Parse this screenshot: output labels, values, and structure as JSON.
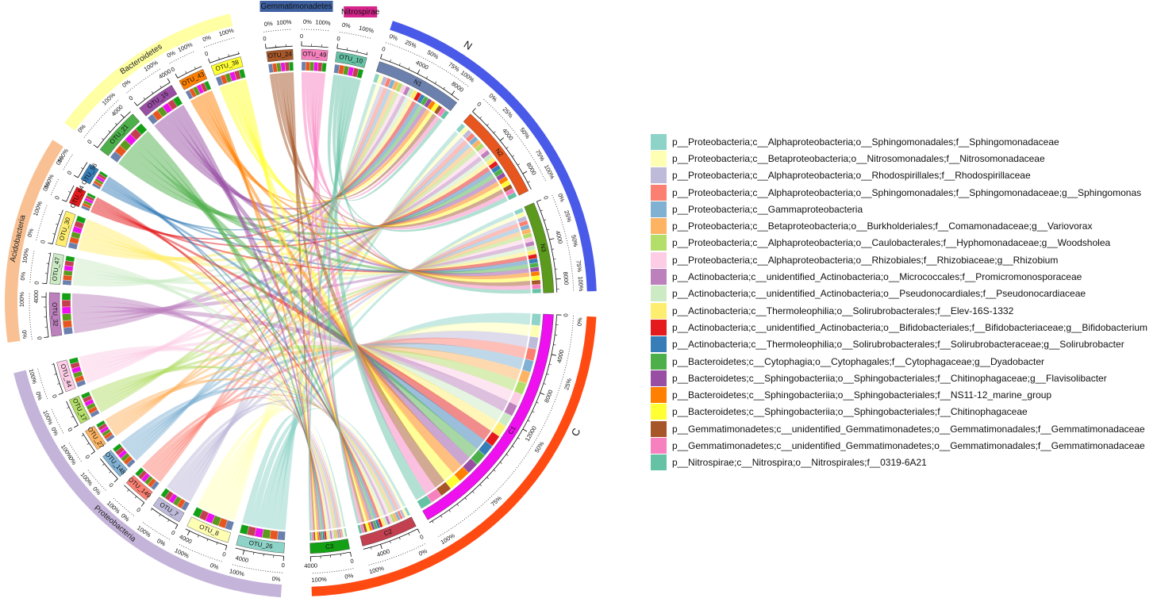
{
  "groups": [
    {
      "label": "N",
      "color": "#4a5ae8"
    },
    {
      "label": "C",
      "color": "#ff4a12"
    }
  ],
  "samples": [
    {
      "label": "N1",
      "color": "#6b80ad"
    },
    {
      "label": "N2",
      "color": "#e8561f"
    },
    {
      "label": "N3",
      "color": "#5b9a1c"
    },
    {
      "label": "C1",
      "color": "#ee10ee"
    },
    {
      "label": "C2",
      "color": "#c2404f"
    },
    {
      "label": "C3",
      "color": "#14a014"
    }
  ],
  "phyla": [
    {
      "label": "Proteobacteria",
      "color": "#c5b4da"
    },
    {
      "label": "Acidobacteria",
      "color": "#f9c193"
    },
    {
      "label": "Bacteroidetes",
      "color": "#ffffa3"
    },
    {
      "label": "Gemmatimonadetes",
      "color": "#3d60a0"
    },
    {
      "label": "Nitrospirae",
      "color": "#d6248b"
    }
  ],
  "otus": [
    {
      "label": "OTU_26",
      "color": "#8dd3c7",
      "taxon": "p__Proteobacteria;c__Alphaproteobacteria;o__Sphingomonadales;f__Sphingomonadaceae"
    },
    {
      "label": "OTU_8",
      "color": "#ffffb3",
      "taxon": "p__Proteobacteria;c__Betaproteobacteria;o__Nitrosomonadales;f__Nitrosomonadaceae"
    },
    {
      "label": "OTU_7",
      "color": "#bebada",
      "taxon": "p__Proteobacteria;c__Alphaproteobacteria;o__Rhodospirillales;f__Rhodospirillaceae"
    },
    {
      "label": "OTU_149",
      "color": "#fb8072",
      "taxon": "p__Proteobacteria;c__Alphaproteobacteria;o__Sphingomonadales;f__Sphingomonadaceae;g__Sphingomonas"
    },
    {
      "label": "OTU_148",
      "color": "#80b1d3",
      "taxon": "p__Proteobacteria;c__Gammaproteobacteria"
    },
    {
      "label": "OTU_27",
      "color": "#fdb462",
      "taxon": "p__Proteobacteria;c__Betaproteobacteria;o__Burkholderiales;f__Comamonadaceae;g__Variovorax"
    },
    {
      "label": "OTU_17",
      "color": "#b3de69",
      "taxon": "p__Proteobacteria;c__Alphaproteobacteria;o__Caulobacterales;f__Hyphomonadaceae;g__Woodsholea"
    },
    {
      "label": "OTU_44",
      "color": "#fccde5",
      "taxon": "p__Proteobacteria;c__Alphaproteobacteria;o__Rhizobiales;f__Rhizobiaceae;g__Rhizobium"
    },
    {
      "label": "OTU_32",
      "color": "#bc80bd",
      "taxon": "p__Actinobacteria;c__unidentified_Actinobacteria;o__Micrococcales;f__Promicromonosporaceae"
    },
    {
      "label": "OTU_47",
      "color": "#ccebc5",
      "taxon": "p__Actinobacteria;c__unidentified_Actinobacteria;o__Pseudonocardiales;f__Pseudonocardiaceae"
    },
    {
      "label": "OTU_30",
      "color": "#ffed6f",
      "taxon": "p__Actinobacteria;c__Thermoleophilia;o__Solirubrobacterales;f__Elev-16S-1332"
    },
    {
      "label": "OTU_64",
      "color": "#e41a1c",
      "taxon": "p__Actinobacteria;c__unidentified_Actinobacteria;o__Bifidobacteriales;f__Bifidobacteriaceae;g__Bifidobacterium"
    },
    {
      "label": "OTU_56",
      "color": "#377eb8",
      "taxon": "p__Actinobacteria;c__Thermoleophilia;o__Solirubrobacterales;f__Solirubrobacteraceae;g__Solirubrobacter"
    },
    {
      "label": "OTU_21",
      "color": "#4daf4a",
      "taxon": "p__Bacteroidetes;c__Cytophagia;o__Cytophagales;f__Cytophagaceae;g__Dyadobacter"
    },
    {
      "label": "OTU_15",
      "color": "#984ea3",
      "taxon": "p__Bacteroidetes;c__Sphingobacteriia;o__Sphingobacteriales;f__Chitinophagaceae;g__Flavisolibacter"
    },
    {
      "label": "OTU_43",
      "color": "#ff7f00",
      "taxon": "p__Bacteroidetes;c__Sphingobacteriia;o__Sphingobacteriales;f__NS11-12_marine_group"
    },
    {
      "label": "OTU_38",
      "color": "#ffff33",
      "taxon": "p__Bacteroidetes;c__Sphingobacteriia;o__Sphingobacteriales;f__Chitinophagaceae"
    },
    {
      "label": "OTU_24",
      "color": "#a65628",
      "taxon": "p__Gemmatimonadetes;c__unidentified_Gemmatimonadetes;o__Gemmatimonadales;f__Gemmatimonadaceae"
    },
    {
      "label": "OTU_49",
      "color": "#f781bf",
      "taxon": "p__Gemmatimonadetes;c__unidentified_Gemmatimonadetes;o__Gemmatimonadales;f__Gemmatimonadaceae"
    },
    {
      "label": "OTU_10",
      "color": "#66c2a5",
      "taxon": "p__Nitrospirae;c__Nitrospira;o__Nitrospirales;f__0319-6A21"
    }
  ],
  "scale": {
    "counts": [
      "0",
      "4000",
      "8000",
      "12000"
    ],
    "percents": [
      "0%",
      "25%",
      "50%",
      "75%",
      "100%"
    ]
  }
}
